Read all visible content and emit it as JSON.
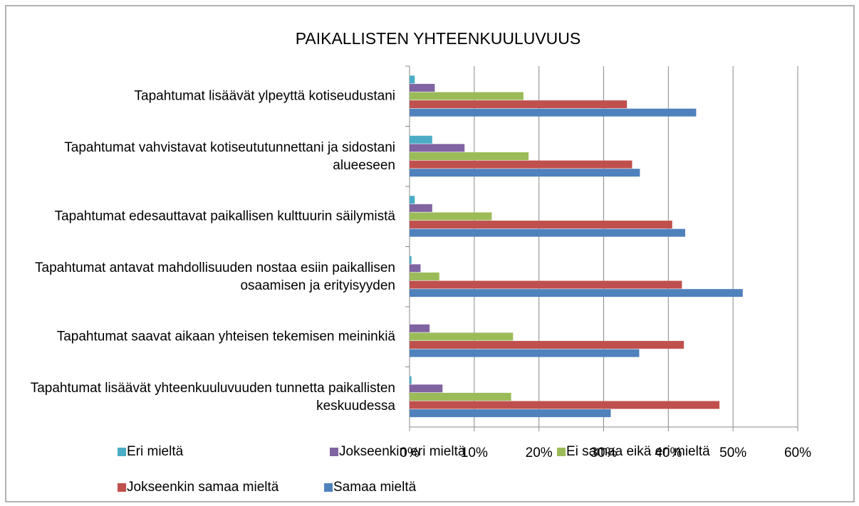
{
  "chart_data": {
    "type": "hbar",
    "title": "PAIKALLISTEN YHTEENKUULUVUUS",
    "categories": [
      "Tapahtumat lisäävät ylpeyttä kotiseudustani",
      "Tapahtumat vahvistavat kotiseututunnettani ja sidostani alueeseen",
      "Tapahtumat edesauttavat paikallisen kulttuurin säilymistä",
      "Tapahtumat antavat mahdollisuuden nostaa esiin paikallisen osaamisen ja erityisyyden",
      "Tapahtumat saavat aikaan yhteisen tekemisen meininkiä",
      "Tapahtumat lisäävät yhteenkuuluvuuden tunnetta paikallisten keskuudessa"
    ],
    "series": [
      {
        "name": "Eri mieltä",
        "color": "#4bacc6",
        "values": [
          0.8,
          3.5,
          0.8,
          0.3,
          0,
          0.3
        ]
      },
      {
        "name": "Jokseenkin eri mieltä",
        "color": "#8064a2",
        "values": [
          3.9,
          8.5,
          3.5,
          1.7,
          3.1,
          5.1
        ]
      },
      {
        "name": "Ei samaa eikä eri mieltä",
        "color": "#9bbb59",
        "values": [
          17.6,
          18.4,
          12.7,
          4.6,
          16.0,
          15.7
        ]
      },
      {
        "name": "Jokseenkin samaa mieltä",
        "color": "#c0504d",
        "values": [
          33.6,
          34.4,
          40.6,
          42.1,
          42.4,
          47.9
        ]
      },
      {
        "name": "Samaa mieltä",
        "color": "#4f81bd",
        "values": [
          44.3,
          35.6,
          42.6,
          51.5,
          35.5,
          31.1
        ]
      }
    ],
    "xlim": [
      0,
      60
    ],
    "xticks": [
      {
        "value": 0,
        "label": "0%"
      },
      {
        "value": 10,
        "label": "10%"
      },
      {
        "value": 20,
        "label": "20%"
      },
      {
        "value": 30,
        "label": "30%"
      },
      {
        "value": 40,
        "label": "40%"
      },
      {
        "value": 50,
        "label": "50%"
      },
      {
        "value": 60,
        "label": "60%"
      }
    ],
    "grid": true,
    "legend": "bottom"
  }
}
